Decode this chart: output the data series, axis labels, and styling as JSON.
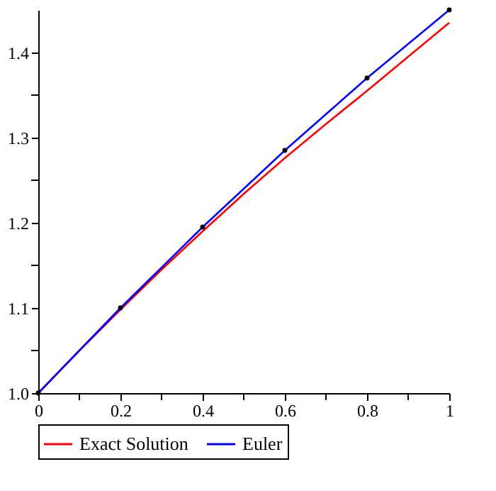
{
  "chart_data": {
    "type": "line",
    "x": [
      0,
      0.1,
      0.2,
      0.3,
      0.4,
      0.5,
      0.6,
      0.7,
      0.8,
      0.9,
      1
    ],
    "series": [
      {
        "name": "Exact Solution",
        "color": "#ff0000",
        "values": [
          1.0,
          1.05,
          1.098,
          1.145,
          1.19,
          1.234,
          1.276,
          1.316,
          1.355,
          1.395,
          1.435
        ]
      },
      {
        "name": "Euler",
        "color": "#0000ff",
        "marker": "circle",
        "x": [
          0,
          0.2,
          0.4,
          0.6,
          0.8,
          1
        ],
        "values": [
          1.0,
          1.1,
          1.195,
          1.285,
          1.37,
          1.45
        ]
      }
    ],
    "xlim": [
      0,
      1
    ],
    "xticks": [
      0,
      {
        "value": 0.1,
        "label": null
      },
      0.2,
      {
        "value": 0.3,
        "label": null
      },
      0.4,
      {
        "value": 0.5,
        "label": null
      },
      0.6,
      {
        "value": 0.7,
        "label": null
      },
      0.8,
      {
        "value": 0.9,
        "label": null
      },
      1
    ],
    "ylim": [
      1.0,
      1.45
    ],
    "yticks": [
      {
        "value": 1.0,
        "label": "1.0"
      },
      {
        "value": 1.05,
        "label": null
      },
      1.1,
      {
        "value": 1.15,
        "label": null
      },
      1.2,
      {
        "value": 1.25,
        "label": null
      },
      1.3,
      {
        "value": 1.35,
        "label": null
      },
      1.4
    ],
    "legend": "bottom",
    "grid": false
  }
}
